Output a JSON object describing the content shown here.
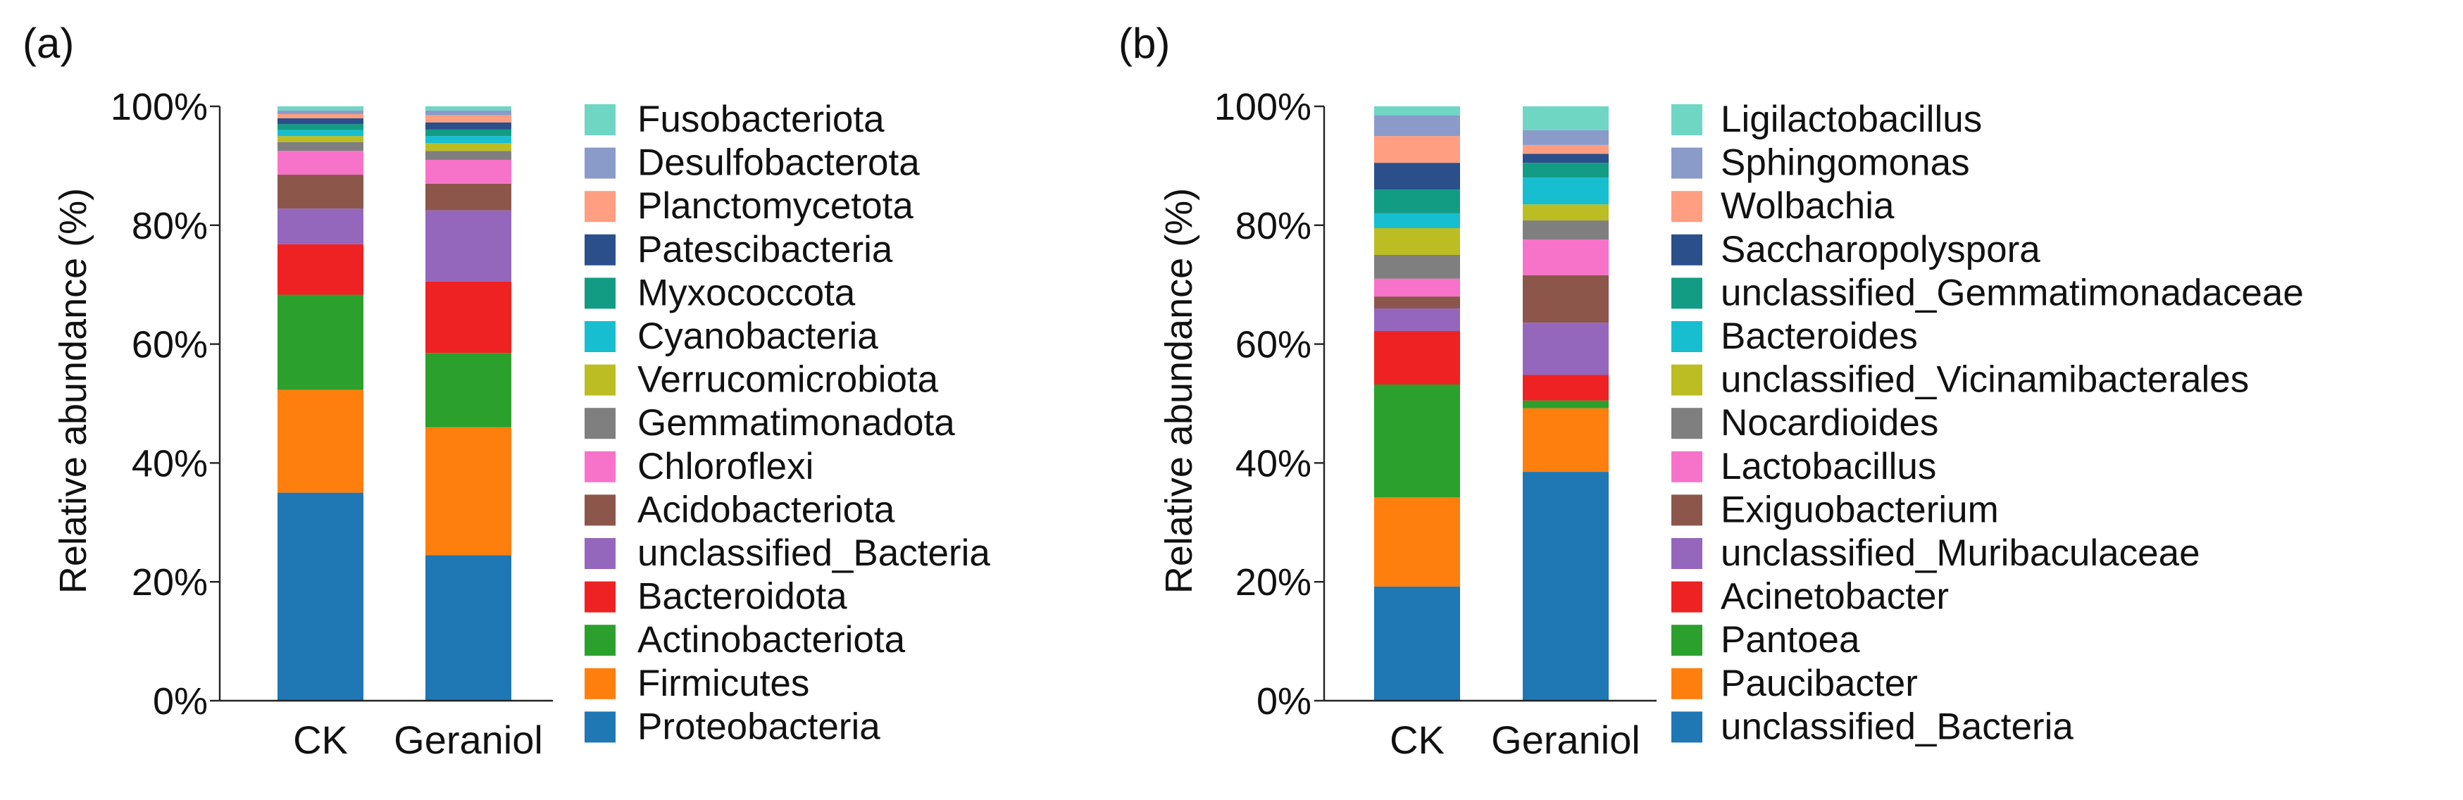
{
  "chart_data": [
    {
      "panel_label": "(a)",
      "type": "bar",
      "stacked": true,
      "ylabel": "Relative abundance (%)",
      "xlabel": "",
      "ylim": [
        0,
        100
      ],
      "yticks": [
        "0%",
        "20%",
        "40%",
        "60%",
        "80%",
        "100%"
      ],
      "categories": [
        "CK",
        "Geraniol"
      ],
      "series": [
        {
          "name": "Proteobacteria",
          "color": "#1f77b4",
          "values": [
            35.0,
            24.5
          ]
        },
        {
          "name": "Firmicutes",
          "color": "#ff7f0e",
          "values": [
            17.3,
            21.5
          ]
        },
        {
          "name": "Actinobacteriota",
          "color": "#2ca02c",
          "values": [
            16.0,
            12.5
          ]
        },
        {
          "name": "Bacteroidota",
          "color": "#ee2222",
          "values": [
            8.5,
            12.0
          ]
        },
        {
          "name": "unclassified_Bacteria",
          "color": "#9467bd",
          "values": [
            6.0,
            12.0
          ]
        },
        {
          "name": "Acidobacteriota",
          "color": "#8c564b",
          "values": [
            5.7,
            4.5
          ]
        },
        {
          "name": "Chloroflexi",
          "color": "#f773c9",
          "values": [
            4.0,
            4.0
          ]
        },
        {
          "name": "Gemmatimonadota",
          "color": "#7f7f7f",
          "values": [
            1.5,
            1.5
          ]
        },
        {
          "name": "Verrucomicrobiota",
          "color": "#bcbd22",
          "values": [
            1.0,
            1.3
          ]
        },
        {
          "name": "Cyanobacteria",
          "color": "#17becf",
          "values": [
            1.0,
            1.2
          ]
        },
        {
          "name": "Myxococcota",
          "color": "#139c84",
          "values": [
            1.0,
            1.1
          ]
        },
        {
          "name": "Patescibacteria",
          "color": "#2a4f8b",
          "values": [
            1.0,
            1.2
          ]
        },
        {
          "name": "Planctomycetota",
          "color": "#ff9e80",
          "values": [
            0.7,
            1.2
          ]
        },
        {
          "name": "Desulfobacterota",
          "color": "#8a9bc9",
          "values": [
            0.6,
            0.8
          ]
        },
        {
          "name": "Fusobacteriota",
          "color": "#6fd6c4",
          "values": [
            0.7,
            0.7
          ]
        }
      ]
    },
    {
      "panel_label": "(b)",
      "type": "bar",
      "stacked": true,
      "ylabel": "Relative abundance (%)",
      "xlabel": "",
      "ylim": [
        0,
        100
      ],
      "yticks": [
        "0%",
        "20%",
        "40%",
        "60%",
        "80%",
        "100%"
      ],
      "categories": [
        "CK",
        "Geraniol"
      ],
      "series": [
        {
          "name": "unclassified_Bacteria",
          "color": "#1f77b4",
          "values": [
            19.2,
            38.5
          ]
        },
        {
          "name": "Paucibacter",
          "color": "#ff7f0e",
          "values": [
            15.0,
            10.7
          ]
        },
        {
          "name": "Pantoea",
          "color": "#2ca02c",
          "values": [
            19.0,
            1.3
          ]
        },
        {
          "name": "Acinetobacter",
          "color": "#ee2222",
          "values": [
            9.0,
            4.3
          ]
        },
        {
          "name": "unclassified_Muribaculaceae",
          "color": "#9467bd",
          "values": [
            3.8,
            8.8
          ]
        },
        {
          "name": "Exiguobacterium",
          "color": "#8c564b",
          "values": [
            2.0,
            8.0
          ]
        },
        {
          "name": "Lactobacillus",
          "color": "#f773c9",
          "values": [
            3.0,
            6.0
          ]
        },
        {
          "name": "Nocardioides",
          "color": "#7f7f7f",
          "values": [
            4.0,
            3.2
          ]
        },
        {
          "name": "unclassified_Vicinamibacterales",
          "color": "#bcbd22",
          "values": [
            4.5,
            2.7
          ]
        },
        {
          "name": "Bacteroides",
          "color": "#17becf",
          "values": [
            2.5,
            4.5
          ]
        },
        {
          "name": "unclassified_Gemmatimonadaceae",
          "color": "#139c84",
          "values": [
            4.0,
            2.5
          ]
        },
        {
          "name": "Saccharopolyspora",
          "color": "#2a4f8b",
          "values": [
            4.5,
            1.5
          ]
        },
        {
          "name": "Wolbachia",
          "color": "#ff9e80",
          "values": [
            4.5,
            1.5
          ]
        },
        {
          "name": "Sphingomonas",
          "color": "#8a9bc9",
          "values": [
            3.5,
            2.5
          ]
        },
        {
          "name": "Ligilactobacillus",
          "color": "#6fd6c4",
          "values": [
            1.5,
            4.0
          ]
        }
      ]
    }
  ]
}
